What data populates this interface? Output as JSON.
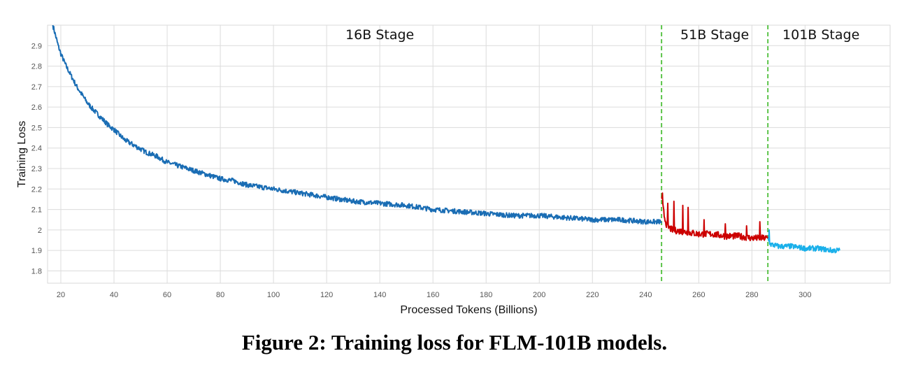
{
  "caption": "Figure 2: Training loss for FLM-101B models.",
  "chart_data": {
    "type": "line",
    "title": "",
    "xlabel": "Processed Tokens (Billions)",
    "ylabel": "Training Loss",
    "xlim": [
      15,
      332
    ],
    "ylim": [
      1.74,
      3.0
    ],
    "xticks": [
      20,
      40,
      60,
      80,
      100,
      120,
      140,
      160,
      180,
      200,
      220,
      240,
      260,
      280,
      300
    ],
    "yticks": [
      1.8,
      1.9,
      2,
      2.1,
      2.2,
      2.3,
      2.4,
      2.5,
      2.6,
      2.7,
      2.8,
      2.9
    ],
    "grid": true,
    "stage_boundaries": [
      246,
      286
    ],
    "stage_labels": [
      {
        "label": "16B Stage",
        "x": 140
      },
      {
        "label": "51B Stage",
        "x": 266
      },
      {
        "label": "101B Stage",
        "x": 306
      }
    ],
    "series": [
      {
        "color": "#1a6db4",
        "x": [
          17,
          18,
          19,
          20,
          22,
          24,
          26,
          28,
          30,
          32,
          35,
          38,
          40,
          44,
          48,
          52,
          56,
          60,
          65,
          70,
          75,
          80,
          85,
          90,
          95,
          100,
          110,
          120,
          130,
          140,
          150,
          160,
          170,
          180,
          190,
          200,
          210,
          220,
          230,
          240,
          246
        ],
        "y": [
          3.0,
          2.95,
          2.9,
          2.86,
          2.8,
          2.75,
          2.7,
          2.66,
          2.62,
          2.59,
          2.55,
          2.51,
          2.49,
          2.44,
          2.41,
          2.38,
          2.36,
          2.33,
          2.31,
          2.29,
          2.27,
          2.25,
          2.24,
          2.22,
          2.21,
          2.2,
          2.18,
          2.16,
          2.14,
          2.13,
          2.12,
          2.1,
          2.09,
          2.08,
          2.07,
          2.07,
          2.06,
          2.05,
          2.05,
          2.04,
          2.04
        ]
      },
      {
        "color": "#cc0000",
        "x": [
          246,
          247,
          248,
          250,
          255,
          260,
          265,
          270,
          275,
          280,
          284,
          286
        ],
        "y": [
          2.16,
          2.07,
          2.02,
          2.0,
          1.99,
          1.98,
          1.98,
          1.97,
          1.97,
          1.96,
          1.96,
          1.96
        ],
        "spikes": [
          [
            246.3,
            2.18
          ],
          [
            248.3,
            2.13
          ],
          [
            250.7,
            2.14
          ],
          [
            254.0,
            2.12
          ],
          [
            256.0,
            2.11
          ],
          [
            262.0,
            2.05
          ],
          [
            270.0,
            2.03
          ],
          [
            278.0,
            2.02
          ],
          [
            283.0,
            2.04
          ]
        ]
      },
      {
        "color": "#1ab0ea",
        "x": [
          286,
          287,
          290,
          295,
          300,
          305,
          310,
          313
        ],
        "y": [
          1.96,
          1.93,
          1.92,
          1.92,
          1.91,
          1.91,
          1.9,
          1.9
        ],
        "spikes": [
          [
            286.5,
            2.0
          ]
        ]
      }
    ]
  }
}
